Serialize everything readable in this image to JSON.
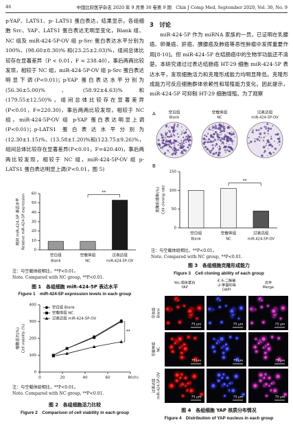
{
  "header": {
    "page": "46",
    "journal": "中国比较医学杂志 2020 年 9 月第 30 卷第 9 期　Chin J Comp Med, September 2020, Vol. 30, No. 9"
  },
  "left_text": "p-YAP、LATS1、p- LATS1 蛋白表达，结果显示，各组细胞 Src、YAP、LATS1 蛋白表达无明显变化，Blank 组、NC 组及 miR-424-5P-OV 组 p-Src 蛋白表达水平分别为 100%、(98.60±8.30)% 和(23.25±2.03)%，组间总体比较存在显著差异（P < 0.01，F = 238.40），事后两两比较发现，相较于 NC 组，miR-424-5P-OV 组 p-Src 蛋白表达明显下调(P<0.01)；p-YAP 蛋白表达水平分别为(56.36±5.00)%、(58.92±4.63)%和(179.55±12.50)%，组间总体比较存在显著差异(P<0.01，F=220.30)，事后两两比较发现，相较于 NC 组，miR-424-5P-OV 组 p-YAP 蛋白表达明显上调(P<0.01)；p-LATS1 蛋白表达水平分别为(12.30±1.15)%、(13.58±1.20)%和(123.75±9.26)%，组间总体比较存在显著差异(P<0.01，F=420.40)，事后两两比较发现，相较于 NC 组，miR-424-5P-OV 组 p- LATS1 蛋白表达明显上调(P<0.01，图 5)",
  "section_heading": "3　讨论",
  "right_text": "miR-424-5P 作为 miRNA 家族的一员，已证明在乳腺癌、卵巢癌、肝癌、胰腺癌及肺癌等恶性肿瘤中发挥重要作用[8-10]。但 miR-424-5P 在结肠癌中的生物学功能还不清楚。本研究通过过表达结肠癌 HT-29 细胞 miR-424-5P 表达水平，发现细胞活力和克隆形成能力均明显降低。克隆形成能力可反应细胞群体依赖性和增殖能力变化。因此提示，miR-424-5P 可抑制 HT-29 细胞增殖。为了观察",
  "figure1": {
    "note_cn": "注：与空载体组相比，**P<0.01。",
    "note_en": "Note. Compared with NC group, **P<0.01.",
    "caption_cn": "图 1　各组细胞 miR-424-5P 表达水平",
    "caption_en": "Figure 1　miR-424-5P expression levels in each group"
  },
  "figure2": {
    "note_cn": "注：与空载体组相比，**P<0.01。",
    "note_en": "Note. Compared with NC group, **P<0.01.",
    "caption_cn": "图 2　各组细胞活力比较",
    "caption_en": "Figure 2　Comparison of cell viability in each group"
  },
  "figure3": {
    "panel_a": {
      "letter": "A",
      "labels_cn": [
        "空白组",
        "空载体组",
        "过表达组"
      ],
      "labels_en": [
        "Blank",
        "NC",
        "miR-424-5P-OV"
      ]
    },
    "panel_b_letter": "B",
    "note_cn": "注：与空载体组相比，**P<0.01。",
    "note_en": "Note. Compared with NC group, **P<0.01.",
    "caption_cn": "图 3　各组细胞克隆形成能力",
    "caption_en": "Figure 3　Cell cloning ability of each group"
  },
  "figure4": {
    "columns": [
      [
        "Yes-相关蛋白",
        "YAP"
      ],
      [
        "4′,6-二脒基",
        "-2-苯基吲哚",
        "DAPI"
      ],
      [
        "合并",
        "Merge"
      ]
    ],
    "rows": [
      [
        "空白组",
        "Blank"
      ],
      [
        "空载体组",
        "NC"
      ],
      [
        "过表达组",
        "miR-424-5P-OV"
      ]
    ],
    "scale": "75 μm",
    "caption_cn": "图 4　各组细胞 YAP 核质分布情况",
    "caption_en": "Figure 4　Distribution of YAP nucleus in each group"
  },
  "chart_data": [
    {
      "type": "bar",
      "y_label_cn": "相对 miR-424-5P 表达水平",
      "y_label_en": "Relative miR-424-5P expression",
      "categories": [
        "空白组",
        "空载体组",
        "过表达组"
      ],
      "categories_en": [
        "Blank",
        "NC",
        "miR-424-5P-OV"
      ],
      "values": [
        9,
        9,
        53
      ],
      "colors": [
        "#9a9a9a",
        "#9a9a9a",
        "#1a1a1a"
      ],
      "ylim": [
        0,
        60
      ],
      "yticks": [
        0,
        10,
        20,
        30,
        40,
        50,
        60
      ],
      "annotation": "**"
    },
    {
      "type": "line",
      "y_label_cn": "细胞活力(%)",
      "y_label_en": "Cell viability (%)",
      "x_label": "(h)",
      "x": [
        12,
        24,
        48,
        72
      ],
      "series": [
        {
          "name": "空白组 Blank",
          "color": "#111111",
          "marker": "circle",
          "values": [
            100,
            140,
            210,
            305
          ]
        },
        {
          "name": "空载体组 NC",
          "color": "#111111",
          "marker": "square",
          "values": [
            100,
            140,
            205,
            300
          ]
        },
        {
          "name": "过表达组 miR-424-5P-OV",
          "color": "#111111",
          "marker": "triangle",
          "values": [
            95,
            110,
            150,
            180
          ]
        }
      ],
      "xlim": [
        0,
        80
      ],
      "xticks": [
        0,
        20,
        40,
        60,
        80
      ],
      "ylim": [
        0,
        400
      ],
      "yticks": [
        0,
        100,
        200,
        300,
        400
      ],
      "annotation": "**"
    },
    {
      "type": "bar",
      "y_label_cn": "克隆形成率(%)",
      "y_label_en": "Cell cloning rate",
      "categories": [
        "空白组",
        "空载体组",
        "过表达组"
      ],
      "categories_en": [
        "Blank",
        "NC",
        "miR-424-5P-OV"
      ],
      "values": [
        100,
        105,
        45
      ],
      "colors": [
        "#f4f4f4",
        "#f4f4f4",
        "#555555"
      ],
      "ylim": [
        0,
        150
      ],
      "yticks": [
        0,
        50,
        100,
        150
      ],
      "annotation": "**"
    }
  ]
}
